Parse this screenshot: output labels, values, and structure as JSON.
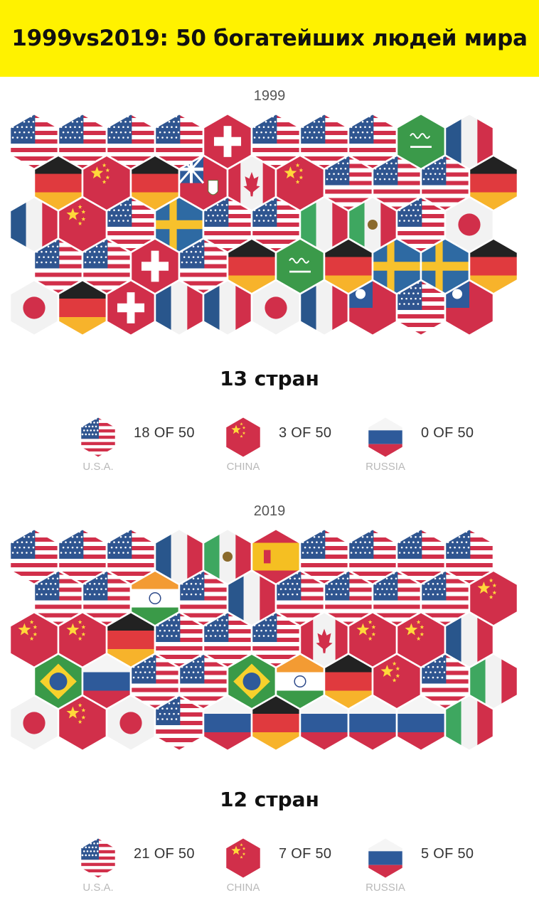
{
  "title": "1999vs2019: 50 богатейших людей мира",
  "chart_data": [
    {
      "type": "hexbin",
      "year": "1999",
      "countries_label": "13 стран",
      "rows": [
        [
          "US",
          "US",
          "US",
          "US",
          "CH",
          "US",
          "US",
          "US",
          "SA",
          "FR"
        ],
        [
          "DE",
          "CN",
          "DE",
          "BM",
          "CA",
          "CN",
          "US",
          "US",
          "US",
          "DE"
        ],
        [
          "FR",
          "CN",
          "US",
          "SE",
          "US",
          "US",
          "IT",
          "MX",
          "US",
          "JP"
        ],
        [
          "US",
          "US",
          "CH",
          "US",
          "DE",
          "SA",
          "DE",
          "SE",
          "SE",
          "DE"
        ],
        [
          "JP",
          "DE",
          "CH",
          "FR",
          "FR",
          "JP",
          "FR",
          "TW",
          "US",
          "TW"
        ]
      ],
      "legend": [
        {
          "flag": "US",
          "name": "U.S.A.",
          "value": "18 OF 50"
        },
        {
          "flag": "CN",
          "name": "CHINA",
          "value": "3 OF 50"
        },
        {
          "flag": "RU",
          "name": "RUSSIA",
          "value": "0 OF 50"
        }
      ]
    },
    {
      "type": "hexbin",
      "year": "2019",
      "countries_label": "12 стран",
      "rows": [
        [
          "US",
          "US",
          "US",
          "FR",
          "MX",
          "ES",
          "US",
          "US",
          "US",
          "US"
        ],
        [
          "US",
          "US",
          "IN",
          "US",
          "FR",
          "US",
          "US",
          "US",
          "US",
          "CN"
        ],
        [
          "CN",
          "CN",
          "DE",
          "US",
          "US",
          "US",
          "CA",
          "CN",
          "CN",
          "FR"
        ],
        [
          "BR",
          "RU",
          "US",
          "US",
          "BR",
          "IN",
          "DE",
          "CN",
          "US",
          "IT"
        ],
        [
          "JP",
          "CN",
          "JP",
          "US",
          "RU",
          "DE",
          "RU",
          "RU",
          "RU",
          "IT"
        ]
      ],
      "legend": [
        {
          "flag": "US",
          "name": "U.S.A.",
          "value": "21 OF 50"
        },
        {
          "flag": "CN",
          "name": "CHINA",
          "value": "7 OF 50"
        },
        {
          "flag": "RU",
          "name": "RUSSIA",
          "value": "5 OF 50"
        }
      ]
    }
  ]
}
